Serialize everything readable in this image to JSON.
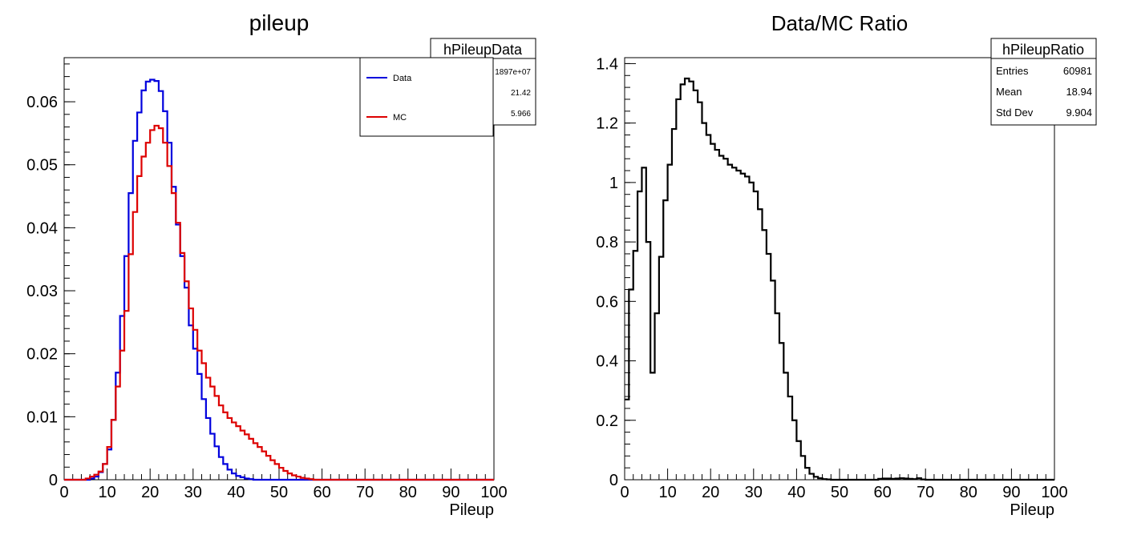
{
  "colors": {
    "data": "#0000dd",
    "mc": "#dd0000",
    "ratio": "#000000",
    "axis": "#000000",
    "background": "#ffffff"
  },
  "chart_data": [
    {
      "type": "histogram",
      "title": "pileup",
      "xlabel": "Pileup",
      "ylabel": "",
      "xlim": [
        0,
        100
      ],
      "ylim": [
        0,
        0.067
      ],
      "x_ticks": [
        0,
        10,
        20,
        30,
        40,
        50,
        60,
        70,
        80,
        90,
        100
      ],
      "y_ticks": [
        0,
        0.01,
        0.02,
        0.03,
        0.04,
        0.05,
        0.06
      ],
      "y_tick_labels": [
        "0",
        "0.01",
        "0.02",
        "0.03",
        "0.04",
        "0.05",
        "0.06"
      ],
      "bin_width": 1,
      "series": [
        {
          "name": "Data",
          "color": "#0000dd",
          "values": [
            0,
            0,
            0,
            0,
            0,
            0,
            0.0002,
            0.0005,
            0.0012,
            0.0025,
            0.0048,
            0.0095,
            0.017,
            0.026,
            0.0355,
            0.0455,
            0.0538,
            0.0583,
            0.0618,
            0.0632,
            0.0635,
            0.0633,
            0.0617,
            0.0585,
            0.0535,
            0.0465,
            0.0405,
            0.0355,
            0.0305,
            0.0245,
            0.0208,
            0.0168,
            0.0128,
            0.0098,
            0.0073,
            0.0053,
            0.0036,
            0.0025,
            0.0016,
            0.001,
            0.0006,
            0.0004,
            0.0002,
            0.0001,
            0,
            0,
            0,
            0,
            0,
            0,
            0,
            0,
            0,
            0,
            0,
            0,
            0,
            0,
            0,
            0,
            0,
            0,
            0,
            0,
            0,
            0,
            0,
            0,
            0,
            0,
            0,
            0,
            0,
            0,
            0,
            0,
            0,
            0,
            0,
            0,
            0,
            0,
            0,
            0,
            0,
            0,
            0,
            0,
            0,
            0,
            0,
            0,
            0,
            0,
            0,
            0,
            0,
            0,
            0,
            0
          ]
        },
        {
          "name": "MC",
          "color": "#dd0000",
          "values": [
            0,
            0,
            0,
            0,
            0,
            0.0002,
            0.0005,
            0.0008,
            0.0013,
            0.0025,
            0.0052,
            0.0095,
            0.0148,
            0.0205,
            0.0268,
            0.0358,
            0.0425,
            0.0482,
            0.0513,
            0.0535,
            0.0555,
            0.0562,
            0.0558,
            0.0535,
            0.0498,
            0.0455,
            0.0408,
            0.036,
            0.0315,
            0.0272,
            0.0238,
            0.0205,
            0.0185,
            0.0162,
            0.0148,
            0.0133,
            0.0118,
            0.0107,
            0.0098,
            0.0091,
            0.0085,
            0.0078,
            0.0072,
            0.0065,
            0.0058,
            0.0052,
            0.0045,
            0.0038,
            0.0031,
            0.0025,
            0.0019,
            0.0014,
            0.001,
            0.0007,
            0.0005,
            0.0003,
            0.0002,
            0.0001,
            0,
            0,
            0,
            0,
            0,
            0,
            0,
            0,
            0,
            0,
            0,
            0,
            0,
            0,
            0,
            0,
            0,
            0,
            0,
            0,
            0,
            0,
            0,
            0,
            0,
            0,
            0,
            0,
            0,
            0,
            0,
            0,
            0,
            0,
            0,
            0,
            0,
            0,
            0,
            0,
            0,
            0
          ]
        }
      ],
      "legend": {
        "position": "top-right",
        "entries": [
          "Data",
          "MC"
        ]
      },
      "stats_box": {
        "name": "hPileupData",
        "rows": [
          {
            "label": "",
            "value": "1897e+07"
          },
          {
            "label": "",
            "value": "21.42"
          },
          {
            "label": "",
            "value": "5.966"
          }
        ]
      }
    },
    {
      "type": "histogram",
      "title": "Data/MC Ratio",
      "xlabel": "Pileup",
      "ylabel": "",
      "xlim": [
        0,
        100
      ],
      "ylim": [
        0,
        1.42
      ],
      "x_ticks": [
        0,
        10,
        20,
        30,
        40,
        50,
        60,
        70,
        80,
        90,
        100
      ],
      "y_ticks": [
        0,
        0.2,
        0.4,
        0.6,
        0.8,
        1,
        1.2,
        1.4
      ],
      "y_tick_labels": [
        "0",
        "0.2",
        "0.4",
        "0.6",
        "0.8",
        "1",
        "1.2",
        "1.4"
      ],
      "bin_width": 1,
      "series": [
        {
          "name": "",
          "color": "#000000",
          "values": [
            0.27,
            0.64,
            0.77,
            0.97,
            1.05,
            0.8,
            0.36,
            0.56,
            0.75,
            0.94,
            1.06,
            1.18,
            1.28,
            1.33,
            1.35,
            1.34,
            1.31,
            1.27,
            1.2,
            1.16,
            1.13,
            1.11,
            1.09,
            1.08,
            1.06,
            1.05,
            1.04,
            1.03,
            1.02,
            1.0,
            0.97,
            0.91,
            0.84,
            0.76,
            0.67,
            0.56,
            0.46,
            0.36,
            0.28,
            0.2,
            0.13,
            0.08,
            0.04,
            0.02,
            0.01,
            0.005,
            0.002,
            0.001,
            0,
            0,
            0,
            0,
            0,
            0,
            0,
            0,
            0,
            0,
            0,
            0.003,
            0.004,
            0.004,
            0.003,
            0.004,
            0.005,
            0.004,
            0.003,
            0.002,
            0.005,
            0.001,
            0,
            0,
            0,
            0,
            0,
            0,
            0,
            0,
            0,
            0,
            0,
            0,
            0,
            0,
            0,
            0,
            0,
            0,
            0,
            0,
            0,
            0,
            0,
            0,
            0,
            0,
            0,
            0,
            0,
            0
          ]
        }
      ],
      "stats_box": {
        "name": "hPileupRatio",
        "rows": [
          {
            "label": "Entries",
            "value": "60981"
          },
          {
            "label": "Mean",
            "value": "18.94"
          },
          {
            "label": "Std Dev",
            "value": "9.904"
          }
        ]
      }
    }
  ]
}
